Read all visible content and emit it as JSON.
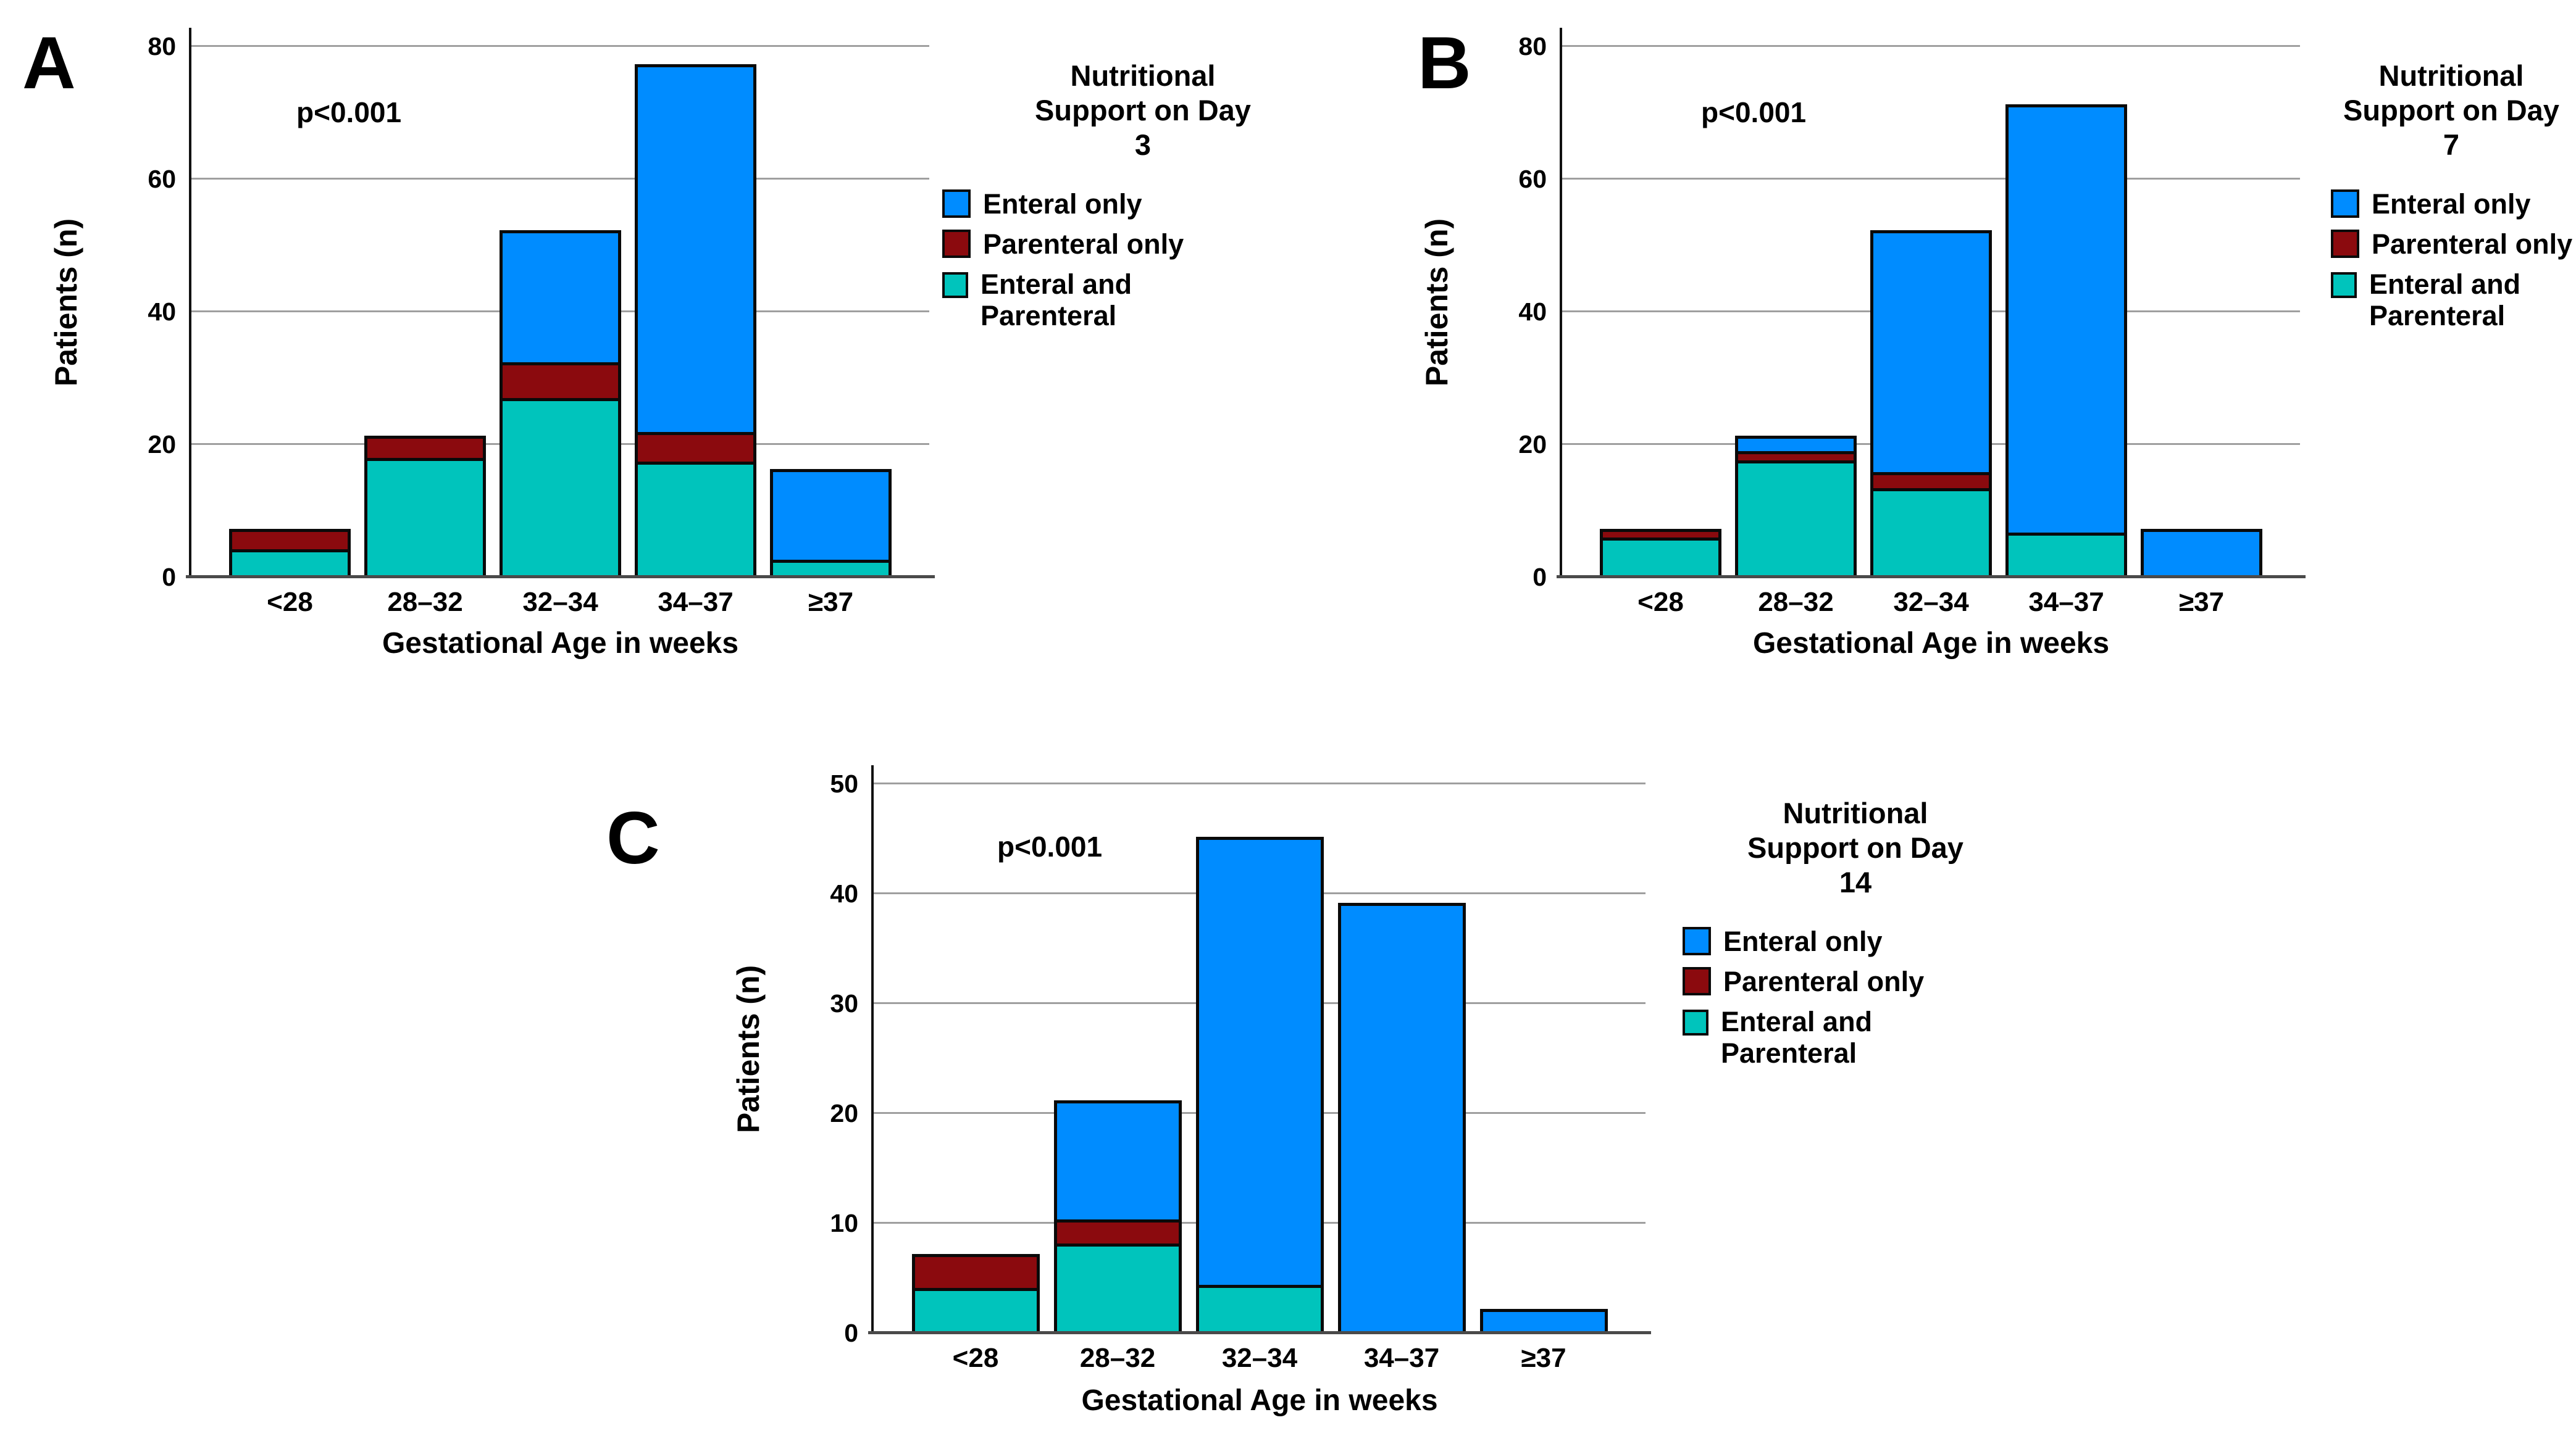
{
  "palette": {
    "background": "#ffffff",
    "gridline": "#9f9f9f",
    "axis": "#111111",
    "baseline": "#4a4a4a",
    "bar_border": "#0a0a0a",
    "enteral_blue": "#008cff",
    "parenteral_red": "#8b0a0e",
    "both_teal": "#00c4bc"
  },
  "chart_data": [
    {
      "type": "bar",
      "stacked": true,
      "panel_label": "A",
      "annotation": "p<0.001",
      "ylabel": "Patients (n)",
      "xlabel": "Gestational Age in weeks",
      "legend_title_lines": [
        "Nutritional",
        "Support on Day",
        "3"
      ],
      "legend_position": "right",
      "grid": "horizontal",
      "categories": [
        "<28",
        "28–32",
        "32–34",
        "34–37",
        "≥37"
      ],
      "yticks": [
        0,
        20,
        40,
        60,
        80
      ],
      "ylim": [
        0,
        80
      ],
      "series": [
        {
          "key": "enteral-only",
          "name": "Enteral only",
          "legend_lines": [
            "Enteral only"
          ],
          "color": "#008cff",
          "values": [
            0,
            0,
            20,
            56,
            14
          ]
        },
        {
          "key": "parenteral-only",
          "name": "Parenteral only",
          "legend_lines": [
            "Parenteral only"
          ],
          "color": "#8b0a0e",
          "values": [
            3,
            3,
            5,
            4,
            0
          ]
        },
        {
          "key": "enteral-and-parenteral",
          "name": "Enteral and Parenteral",
          "legend_lines": [
            "Enteral and",
            "Parenteral"
          ],
          "color": "#00c4bc",
          "values": [
            4,
            18,
            27,
            17,
            2
          ]
        }
      ],
      "bar_totals": [
        7,
        21,
        52,
        77,
        16
      ]
    },
    {
      "type": "bar",
      "stacked": true,
      "panel_label": "B",
      "annotation": "p<0.001",
      "ylabel": "Patients (n)",
      "xlabel": "Gestational Age in weeks",
      "legend_title_lines": [
        "Nutritional",
        "Support on Day",
        "7"
      ],
      "legend_position": "right",
      "grid": "horizontal",
      "categories": [
        "<28",
        "28–32",
        "32–34",
        "34–37",
        "≥37"
      ],
      "yticks": [
        0,
        20,
        40,
        60,
        80
      ],
      "ylim": [
        0,
        80
      ],
      "series": [
        {
          "key": "enteral-only",
          "name": "Enteral only",
          "legend_lines": [
            "Enteral only"
          ],
          "color": "#008cff",
          "values": [
            0,
            2,
            37,
            65,
            7
          ]
        },
        {
          "key": "parenteral-only",
          "name": "Parenteral only",
          "legend_lines": [
            "Parenteral only"
          ],
          "color": "#8b0a0e",
          "values": [
            1,
            1,
            2,
            0,
            0
          ]
        },
        {
          "key": "enteral-and-parenteral",
          "name": "Enteral and Parenteral",
          "legend_lines": [
            "Enteral and",
            "Parenteral"
          ],
          "color": "#00c4bc",
          "values": [
            6,
            18,
            13,
            6,
            0
          ]
        }
      ],
      "bar_totals": [
        7,
        21,
        52,
        71,
        7
      ]
    },
    {
      "type": "bar",
      "stacked": true,
      "panel_label": "C",
      "annotation": "p<0.001",
      "ylabel": "Patients (n)",
      "xlabel": "Gestational Age in weeks",
      "legend_title_lines": [
        "Nutritional",
        "Support on Day",
        "14"
      ],
      "legend_position": "right",
      "grid": "horizontal",
      "categories": [
        "<28",
        "28–32",
        "32–34",
        "34–37",
        "≥37"
      ],
      "yticks": [
        0,
        10,
        20,
        30,
        40,
        50
      ],
      "ylim": [
        0,
        50
      ],
      "series": [
        {
          "key": "enteral-only",
          "name": "Enteral only",
          "legend_lines": [
            "Enteral only"
          ],
          "color": "#008cff",
          "values": [
            0,
            11,
            41,
            39,
            2
          ]
        },
        {
          "key": "parenteral-only",
          "name": "Parenteral only",
          "legend_lines": [
            "Parenteral only"
          ],
          "color": "#8b0a0e",
          "values": [
            3,
            2,
            0,
            0,
            0
          ]
        },
        {
          "key": "enteral-and-parenteral",
          "name": "Enteral and Parenteral",
          "legend_lines": [
            "Enteral and",
            "Parenteral"
          ],
          "color": "#00c4bc",
          "values": [
            4,
            8,
            4,
            0,
            0
          ]
        }
      ],
      "bar_totals": [
        7,
        21,
        45,
        39,
        2
      ]
    }
  ]
}
